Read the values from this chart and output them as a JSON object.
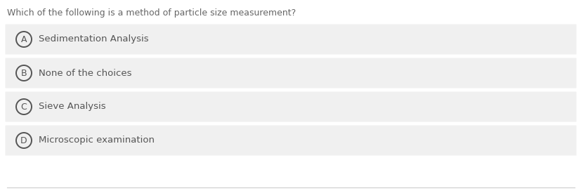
{
  "question": "Which of the following is a method of particle size measurement?",
  "options": [
    {
      "label": "A",
      "text": "Sedimentation Analysis"
    },
    {
      "label": "B",
      "text": "None of the choices"
    },
    {
      "label": "C",
      "text": "Sieve Analysis"
    },
    {
      "label": "D",
      "text": "Microscopic examination"
    }
  ],
  "bg_color": "#ffffff",
  "option_bg_color": "#f0f0f0",
  "question_color": "#666666",
  "option_text_color": "#555555",
  "circle_edge_color": "#555555",
  "circle_face_color": "#f0f0f0",
  "bottom_line_color": "#cccccc",
  "question_fontsize": 9.0,
  "option_fontsize": 9.5,
  "label_fontsize": 9.0,
  "fig_width": 8.28,
  "fig_height": 2.72,
  "dpi": 100
}
